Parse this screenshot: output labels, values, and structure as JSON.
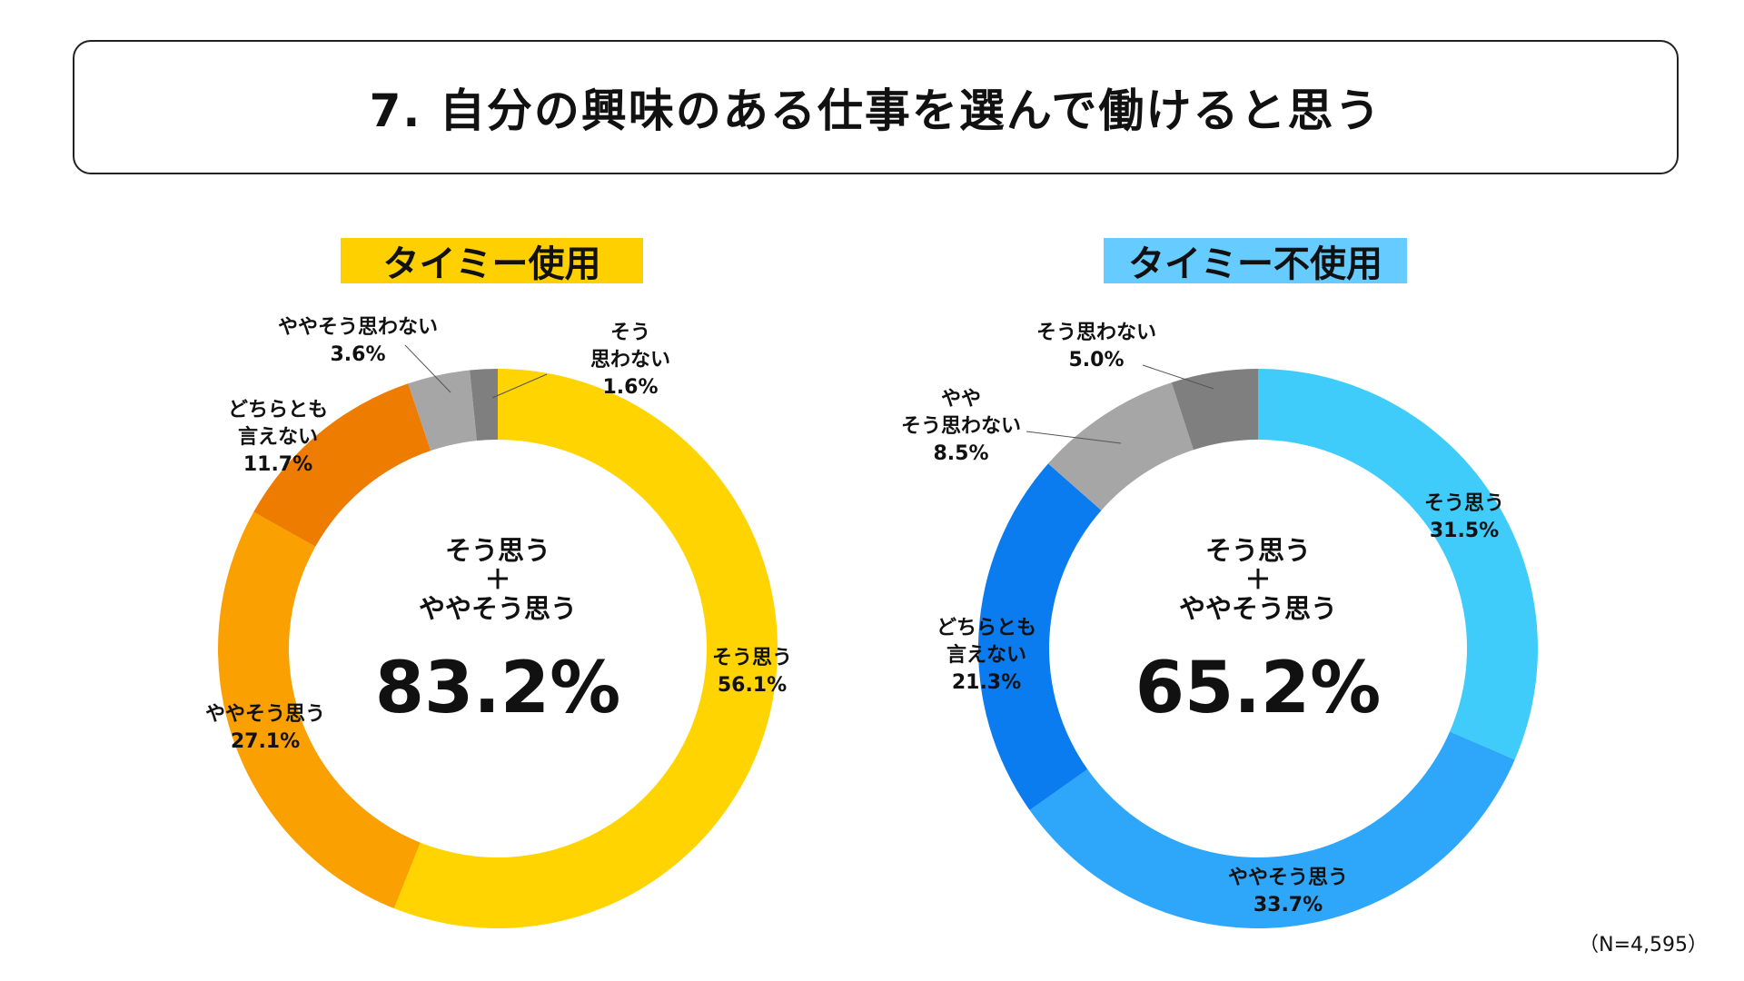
{
  "title": "7. 自分の興味のある仕事を選んで働けると思う",
  "note": "（N=4,595）",
  "chart_data": [
    {
      "type": "pie",
      "title": "タイミー使用",
      "title_color": "#FFD000",
      "center_lines": [
        "そう思う",
        "＋",
        "ややそう思う"
      ],
      "center_value": "83.2%",
      "slices": [
        {
          "lines": [
            "そう思う",
            "56.1%"
          ],
          "value": 56.1,
          "color": "#FFD400"
        },
        {
          "lines": [
            "ややそう思う",
            "27.1%"
          ],
          "value": 27.1,
          "color": "#FAA000"
        },
        {
          "lines": [
            "どちらとも",
            "言えない",
            "11.7%"
          ],
          "value": 11.7,
          "color": "#EE7C00"
        },
        {
          "lines": [
            "ややそう思わない",
            "3.6%"
          ],
          "value": 3.6,
          "color": "#A6A6A6"
        },
        {
          "lines": [
            "そう",
            "思わない",
            "1.6%"
          ],
          "value": 1.6,
          "color": "#7F7F7F"
        }
      ]
    },
    {
      "type": "pie",
      "title": "タイミー不使用",
      "title_color": "#66CCFF",
      "center_lines": [
        "そう思う",
        "＋",
        "ややそう思う"
      ],
      "center_value": "65.2%",
      "slices": [
        {
          "lines": [
            "そう思う",
            "31.5%"
          ],
          "value": 31.5,
          "color": "#3FCCFA"
        },
        {
          "lines": [
            "ややそう思う",
            "33.7%"
          ],
          "value": 33.7,
          "color": "#2EA7FA"
        },
        {
          "lines": [
            "どちらとも",
            "言えない",
            "21.3%"
          ],
          "value": 21.3,
          "color": "#0A7CF0"
        },
        {
          "lines": [
            "やや",
            "そう思わない",
            "8.5%"
          ],
          "value": 8.5,
          "color": "#A6A6A6"
        },
        {
          "lines": [
            "そう思わない",
            "5.0%"
          ],
          "value": 5.0,
          "color": "#7F7F7F"
        }
      ]
    }
  ]
}
